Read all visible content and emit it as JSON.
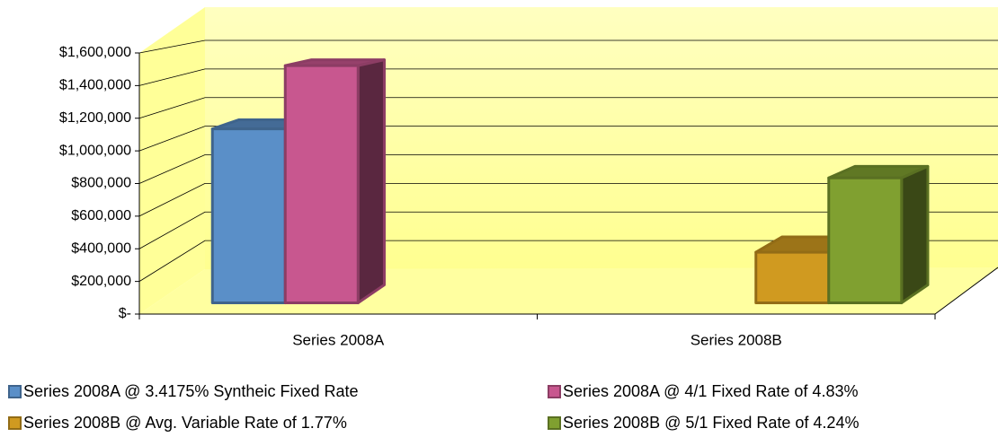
{
  "chart_data": {
    "type": "bar3d",
    "categories": [
      "Series 2008A",
      "Series 2008B"
    ],
    "series": [
      {
        "name": "Series 2008A @ 3.4175%  Syntheic Fixed Rate",
        "color": "#5a8fc8",
        "values": [
          1100000,
          null
        ]
      },
      {
        "name": "Series 2008A @ 4/1 Fixed Rate of 4.83%",
        "color": "#c8578f",
        "values": [
          1500000,
          null
        ]
      },
      {
        "name": "Series 2008B @ Avg. Variable Rate of 1.77%",
        "color": "#d09a20",
        "values": [
          null,
          320000
        ]
      },
      {
        "name": "Series 2008B @ 5/1 Fixed Rate of 4.24%",
        "color": "#80a030",
        "values": [
          null,
          790000
        ]
      }
    ],
    "ylim": [
      0,
      1600000
    ],
    "yticks": [
      {
        "value": 0,
        "label": "$-"
      },
      {
        "value": 200000,
        "label": "$200,000"
      },
      {
        "value": 400000,
        "label": "$400,000"
      },
      {
        "value": 600000,
        "label": "$600,000"
      },
      {
        "value": 800000,
        "label": "$800,000"
      },
      {
        "value": 1000000,
        "label": "$1,000,000"
      },
      {
        "value": 1200000,
        "label": "$1,200,000"
      },
      {
        "value": 1400000,
        "label": "$1,400,000"
      },
      {
        "value": 1600000,
        "label": "$1,600,000"
      }
    ],
    "grid": true
  }
}
